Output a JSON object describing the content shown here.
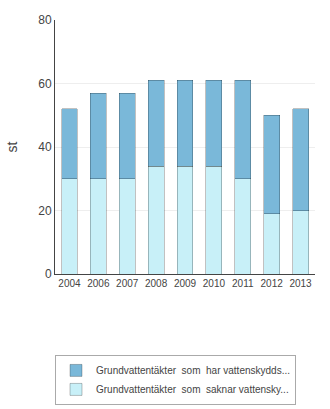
{
  "chart_data": {
    "type": "bar",
    "stacked": true,
    "categories": [
      "2004",
      "2006",
      "2007",
      "2008",
      "2009",
      "2010",
      "2011",
      "2012",
      "2013"
    ],
    "series": [
      {
        "name": "Grundvattentäkter  som  saknar vattensky...",
        "color": "#c8f0f8",
        "values": [
          30,
          30,
          30,
          34,
          34,
          34,
          30,
          19,
          20
        ]
      },
      {
        "name": "Grundvattentäkter  som  har vattenskydds...",
        "color": "#7ab8d9",
        "values": [
          22,
          27,
          27,
          27,
          27,
          27,
          31,
          31,
          32
        ]
      }
    ],
    "ylabel": "st",
    "ylim": [
      0,
      80
    ],
    "yticks": [
      0,
      20,
      40,
      60,
      80
    ],
    "grid": true,
    "legend": "bottom"
  }
}
